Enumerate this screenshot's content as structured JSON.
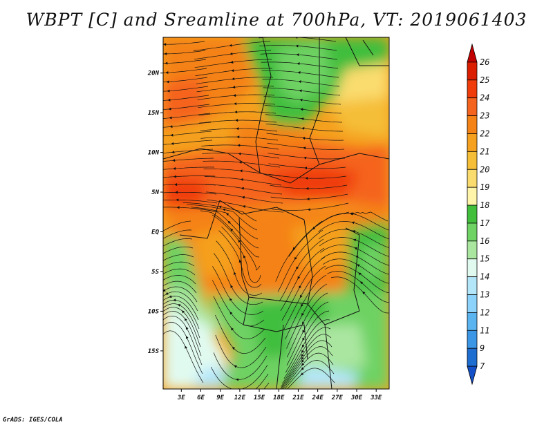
{
  "title": "WBPT [C] and Sreamline at 700hPa, VT: 2019061403",
  "footer": "GrADS: IGES/COLA",
  "map": {
    "lat_labels": [
      "20N",
      "15N",
      "10N",
      "5N",
      "EQ",
      "5S",
      "10S",
      "15S"
    ],
    "lat_values": [
      20,
      15,
      10,
      5,
      0,
      -5,
      -10,
      -15
    ],
    "lon_labels": [
      "3E",
      "6E",
      "9E",
      "12E",
      "15E",
      "18E",
      "21E",
      "24E",
      "27E",
      "30E",
      "33E"
    ],
    "lon_values": [
      3,
      6,
      9,
      12,
      15,
      18,
      21,
      24,
      27,
      30,
      33
    ],
    "lon_range": [
      0.2,
      35.0
    ],
    "lat_range": [
      -19.8,
      24.5
    ]
  },
  "colorbar": {
    "labels": [
      "26",
      "25",
      "24",
      "23",
      "22",
      "21",
      "20",
      "19",
      "18",
      "17",
      "16",
      "15",
      "14",
      "13",
      "12",
      "11",
      "9",
      "7"
    ],
    "colors": [
      "#c30000",
      "#dc1e00",
      "#f03c0a",
      "#f5641e",
      "#f58214",
      "#f5a01e",
      "#f5be37",
      "#fadc6e",
      "#fff5aa",
      "#41be3c",
      "#6ed264",
      "#aae6a0",
      "#e1faf0",
      "#b4e6fa",
      "#8cd2fa",
      "#5ab4f0",
      "#3c96e6",
      "#1e6ed2",
      "#1450c8"
    ]
  }
}
